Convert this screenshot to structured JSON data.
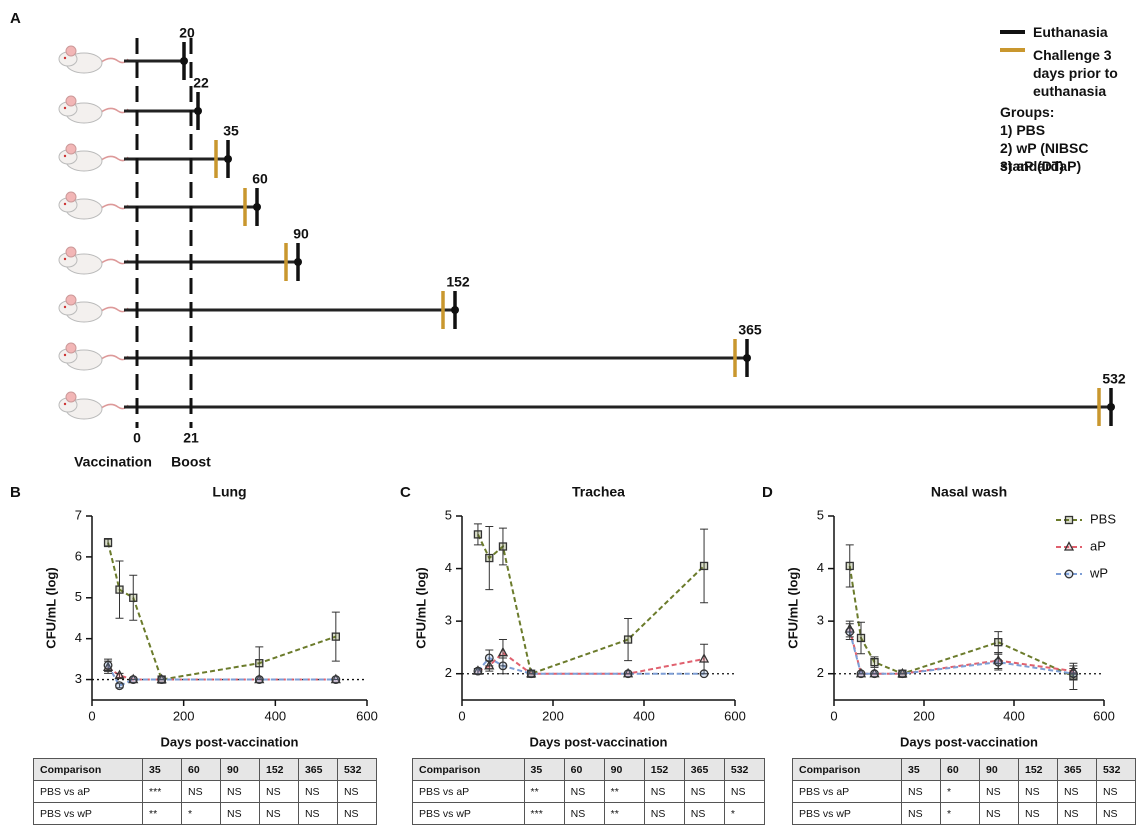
{
  "timeline": {
    "panel_label": "A",
    "start": {
      "day": 0,
      "label": "Vaccination"
    },
    "boost": {
      "day": 21,
      "label": "Boost"
    },
    "rows": [
      {
        "day": 20,
        "challenge": false
      },
      {
        "day": 22,
        "challenge": false
      },
      {
        "day": 35,
        "challenge": true
      },
      {
        "day": 60,
        "challenge": true
      },
      {
        "day": 90,
        "challenge": true
      },
      {
        "day": 152,
        "challenge": true
      },
      {
        "day": 365,
        "challenge": true
      },
      {
        "day": 532,
        "challenge": true
      }
    ],
    "legend": {
      "euthanasia": "Euthanasia",
      "challenge": "Challenge 3 days prior to euthanasia",
      "groups_title": "Groups:",
      "groups": [
        "1)  PBS",
        "2)  wP (NIBSC standard)",
        "3)  aP (DTaP)"
      ]
    }
  },
  "chart_data": [
    {
      "type": "line",
      "panel_label": "B",
      "title": "Lung",
      "x_label": "Days post-vaccination",
      "y_label": "CFU/mL (log)",
      "x": [
        35,
        60,
        90,
        152,
        365,
        532
      ],
      "xlim": [
        0,
        600
      ],
      "xticks": [
        0,
        200,
        400,
        600
      ],
      "ylim": [
        2.5,
        7
      ],
      "yticks": [
        3,
        4,
        5,
        6,
        7
      ],
      "reference_line": 3,
      "legend": false,
      "series": [
        {
          "name": "PBS",
          "color": "#6b7b2b",
          "marker": "square",
          "values": [
            6.35,
            5.2,
            5.0,
            3.0,
            3.4,
            4.05
          ],
          "errors": [
            0.1,
            0.7,
            0.55,
            0,
            0.4,
            0.6
          ]
        },
        {
          "name": "aP",
          "color": "#e0606e",
          "marker": "triangle",
          "values": [
            3.3,
            3.1,
            3.0,
            3.0,
            3.0,
            3.0
          ],
          "errors": [
            0.15,
            0.05,
            0,
            0,
            0,
            0
          ]
        },
        {
          "name": "wP",
          "color": "#7d9ed6",
          "marker": "circle",
          "values": [
            3.35,
            2.85,
            3.0,
            3.0,
            3.0,
            3.0
          ],
          "errors": [
            0.15,
            0.05,
            0,
            0,
            0,
            0
          ]
        }
      ]
    },
    {
      "type": "line",
      "panel_label": "C",
      "title": "Trachea",
      "x_label": "Days post-vaccination",
      "y_label": "CFU/mL (log)",
      "x": [
        35,
        60,
        90,
        152,
        365,
        532
      ],
      "xlim": [
        0,
        600
      ],
      "xticks": [
        0,
        200,
        400,
        600
      ],
      "ylim": [
        1.5,
        5
      ],
      "yticks": [
        2,
        3,
        4,
        5
      ],
      "reference_line": 2,
      "legend": false,
      "series": [
        {
          "name": "PBS",
          "color": "#6b7b2b",
          "marker": "square",
          "values": [
            4.65,
            4.2,
            4.42,
            2.0,
            2.65,
            4.05
          ],
          "errors": [
            0.2,
            0.6,
            0.35,
            0,
            0.4,
            0.7
          ]
        },
        {
          "name": "aP",
          "color": "#e0606e",
          "marker": "triangle",
          "values": [
            2.05,
            2.15,
            2.4,
            2.0,
            2.0,
            2.28
          ],
          "errors": [
            0.05,
            0.1,
            0.25,
            0,
            0,
            0.28
          ]
        },
        {
          "name": "wP",
          "color": "#7d9ed6",
          "marker": "circle",
          "values": [
            2.05,
            2.3,
            2.15,
            2.0,
            2.0,
            2.0
          ],
          "errors": [
            0.05,
            0.15,
            0.15,
            0,
            0,
            0
          ]
        }
      ]
    },
    {
      "type": "line",
      "panel_label": "D",
      "title": "Nasal wash",
      "x_label": "Days post-vaccination",
      "y_label": "CFU/mL (log)",
      "x": [
        35,
        60,
        90,
        152,
        365,
        532
      ],
      "xlim": [
        0,
        600
      ],
      "xticks": [
        0,
        200,
        400,
        600
      ],
      "ylim": [
        1.5,
        5
      ],
      "yticks": [
        2,
        3,
        4,
        5
      ],
      "reference_line": 2,
      "legend": true,
      "series": [
        {
          "name": "PBS",
          "color": "#6b7b2b",
          "marker": "square",
          "values": [
            4.05,
            2.68,
            2.22,
            2.0,
            2.6,
            1.95
          ],
          "errors": [
            0.4,
            0.3,
            0.1,
            0,
            0.2,
            0.25
          ]
        },
        {
          "name": "aP",
          "color": "#e0606e",
          "marker": "triangle",
          "values": [
            2.85,
            2.0,
            2.0,
            2.0,
            2.25,
            2.05
          ],
          "errors": [
            0.15,
            0,
            0,
            0,
            0.15,
            0.1
          ]
        },
        {
          "name": "wP",
          "color": "#7d9ed6",
          "marker": "circle",
          "values": [
            2.8,
            2.0,
            2.0,
            2.0,
            2.22,
            2.0
          ],
          "errors": [
            0.15,
            0,
            0,
            0,
            0.15,
            0.1
          ]
        }
      ]
    }
  ],
  "tables": [
    {
      "headers": [
        "Comparison",
        35,
        60,
        90,
        152,
        365,
        532
      ],
      "rows": [
        [
          "PBS vs aP",
          "***",
          "NS",
          "NS",
          "NS",
          "NS",
          "NS"
        ],
        [
          "PBS vs wP",
          "**",
          "*",
          "NS",
          "NS",
          "NS",
          "NS"
        ]
      ]
    },
    {
      "headers": [
        "Comparison",
        35,
        60,
        90,
        152,
        365,
        532
      ],
      "rows": [
        [
          "PBS vs aP",
          "**",
          "NS",
          "**",
          "NS",
          "NS",
          "NS"
        ],
        [
          "PBS vs wP",
          "***",
          "NS",
          "**",
          "NS",
          "NS",
          "*"
        ]
      ]
    },
    {
      "headers": [
        "Comparison",
        35,
        60,
        90,
        152,
        365,
        532
      ],
      "rows": [
        [
          "PBS vs aP",
          "NS",
          "*",
          "NS",
          "NS",
          "NS",
          "NS"
        ],
        [
          "PBS vs wP",
          "NS",
          "*",
          "NS",
          "NS",
          "NS",
          "NS"
        ]
      ]
    }
  ]
}
